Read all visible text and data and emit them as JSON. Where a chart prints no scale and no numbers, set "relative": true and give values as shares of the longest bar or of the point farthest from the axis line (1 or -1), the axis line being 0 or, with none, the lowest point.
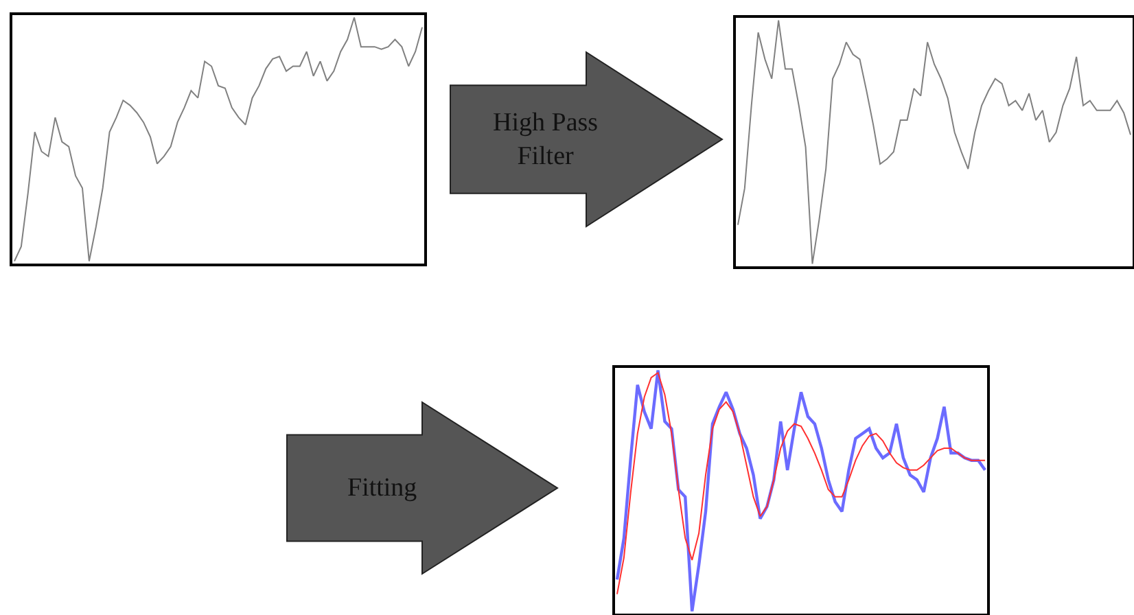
{
  "chart_data": [
    {
      "type": "line",
      "relative": true,
      "categories": [
        null,
        null,
        null,
        null,
        null,
        null,
        null,
        null,
        null,
        null,
        null,
        null,
        null,
        null,
        null,
        null,
        null,
        null,
        null,
        null,
        null,
        null,
        null,
        null,
        null,
        null,
        null,
        null,
        null,
        null,
        null,
        null,
        null,
        null,
        null,
        null,
        null,
        null,
        null,
        null,
        null,
        null,
        null,
        null,
        null,
        null,
        null,
        null,
        null,
        null,
        null,
        null,
        null,
        null,
        null,
        null,
        null,
        null,
        null,
        null,
        null
      ],
      "series": [
        {
          "color": "#808080",
          "values": [
            0.0,
            0.06,
            0.28,
            0.53,
            0.45,
            0.43,
            0.59,
            0.49,
            0.47,
            0.35,
            0.3,
            0.0,
            0.14,
            0.3,
            0.53,
            0.59,
            0.66,
            0.64,
            0.61,
            0.57,
            0.51,
            0.4,
            0.43,
            0.47,
            0.57,
            0.63,
            0.7,
            0.67,
            0.82,
            0.8,
            0.72,
            0.71,
            0.63,
            0.59,
            0.56,
            0.67,
            0.72,
            0.79,
            0.83,
            0.84,
            0.78,
            0.8,
            0.8,
            0.86,
            0.76,
            0.82,
            0.74,
            0.78,
            0.86,
            0.91,
            1.0,
            0.88,
            0.88,
            0.88,
            0.87,
            0.88,
            0.91,
            0.88,
            0.8,
            0.86,
            0.96
          ]
        }
      ]
    },
    {
      "type": "other",
      "annotations": [
        "High Pass Filter"
      ]
    },
    {
      "type": "line",
      "relative": true,
      "categories": [
        null,
        null,
        null,
        null,
        null,
        null,
        null,
        null,
        null,
        null,
        null,
        null,
        null,
        null,
        null,
        null,
        null,
        null,
        null,
        null,
        null,
        null,
        null,
        null,
        null,
        null,
        null,
        null,
        null,
        null,
        null,
        null,
        null,
        null,
        null,
        null,
        null,
        null,
        null,
        null,
        null,
        null,
        null,
        null,
        null,
        null,
        null,
        null,
        null,
        null,
        null,
        null,
        null,
        null,
        null,
        null,
        null,
        null,
        null
      ],
      "series": [
        {
          "color": "#808080",
          "values": [
            0.16,
            0.31,
            0.65,
            0.95,
            0.84,
            0.76,
            1.0,
            0.8,
            0.8,
            0.65,
            0.48,
            0.0,
            0.18,
            0.39,
            0.76,
            0.82,
            0.91,
            0.86,
            0.84,
            0.71,
            0.57,
            0.41,
            0.43,
            0.46,
            0.59,
            0.59,
            0.72,
            0.69,
            0.91,
            0.82,
            0.76,
            0.68,
            0.54,
            0.46,
            0.39,
            0.54,
            0.65,
            0.71,
            0.76,
            0.74,
            0.65,
            0.67,
            0.63,
            0.7,
            0.59,
            0.63,
            0.5,
            0.54,
            0.65,
            0.72,
            0.85,
            0.65,
            0.67,
            0.63,
            0.63,
            0.63,
            0.67,
            0.62,
            0.53
          ]
        }
      ]
    },
    {
      "type": "other",
      "annotations": [
        "Fitting"
      ]
    },
    {
      "type": "line",
      "relative": true,
      "categories": [
        null,
        null,
        null,
        null,
        null,
        null,
        null,
        null,
        null,
        null,
        null,
        null,
        null,
        null,
        null,
        null,
        null,
        null,
        null,
        null,
        null,
        null,
        null,
        null,
        null,
        null,
        null,
        null,
        null,
        null,
        null,
        null,
        null,
        null,
        null,
        null,
        null,
        null,
        null,
        null,
        null,
        null,
        null,
        null,
        null,
        null,
        null,
        null,
        null,
        null,
        null,
        null,
        null,
        null,
        null
      ],
      "series": [
        {
          "color": "#6b6bff",
          "values": [
            0.14,
            0.31,
            0.64,
            0.94,
            0.83,
            0.76,
            1.0,
            0.79,
            0.76,
            0.51,
            0.48,
            0.01,
            0.2,
            0.42,
            0.78,
            0.85,
            0.91,
            0.84,
            0.74,
            0.68,
            0.57,
            0.39,
            0.44,
            0.55,
            0.79,
            0.59,
            0.76,
            0.91,
            0.81,
            0.78,
            0.68,
            0.55,
            0.46,
            0.42,
            0.59,
            0.72,
            0.74,
            0.76,
            0.68,
            0.64,
            0.66,
            0.78,
            0.64,
            0.57,
            0.55,
            0.5,
            0.64,
            0.72,
            0.85,
            0.66,
            0.66,
            0.64,
            0.63,
            0.63,
            0.59
          ]
        },
        {
          "color": "#ff3030",
          "values": [
            0.08,
            0.23,
            0.5,
            0.74,
            0.89,
            0.97,
            0.99,
            0.9,
            0.74,
            0.51,
            0.31,
            0.22,
            0.33,
            0.57,
            0.76,
            0.84,
            0.87,
            0.83,
            0.74,
            0.61,
            0.48,
            0.4,
            0.44,
            0.55,
            0.68,
            0.75,
            0.78,
            0.77,
            0.72,
            0.66,
            0.59,
            0.51,
            0.48,
            0.48,
            0.55,
            0.63,
            0.69,
            0.73,
            0.74,
            0.71,
            0.66,
            0.62,
            0.6,
            0.59,
            0.59,
            0.61,
            0.64,
            0.67,
            0.68,
            0.68,
            0.66,
            0.64,
            0.63,
            0.63,
            0.63
          ]
        }
      ]
    }
  ]
}
